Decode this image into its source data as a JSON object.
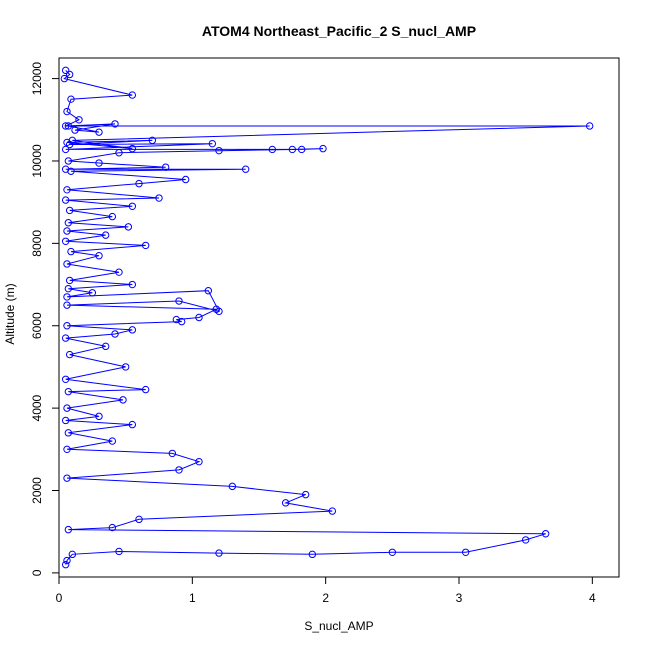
{
  "chart_data": {
    "type": "scatter",
    "title": "ATOM4 Northeast_Pacific_2 S_nucl_AMP",
    "xlabel": "S_nucl_AMP",
    "ylabel": "Altitude (m)",
    "xlim": [
      0,
      4.2
    ],
    "ylim": [
      -100,
      12500
    ],
    "x_ticks": [
      0,
      1,
      2,
      3,
      4
    ],
    "y_ticks": [
      0,
      2000,
      4000,
      6000,
      8000,
      10000,
      12000
    ],
    "grid": false,
    "legend": "none",
    "colors": {
      "series": "#0000ff",
      "axis": "#000000"
    },
    "series": [
      {
        "x": [
          0.05,
          0.08,
          0.04,
          0.55,
          0.09,
          0.06,
          0.15,
          0.05,
          0.42,
          0.12,
          0.3,
          0.07,
          3.98,
          0.1,
          0.55,
          0.06,
          0.7,
          0.08,
          1.15,
          0.05,
          1.6,
          1.75,
          1.98,
          1.82,
          1.2,
          0.45,
          0.07,
          0.3,
          0.8,
          0.05,
          1.4,
          0.09,
          0.95,
          0.6,
          0.06,
          0.75,
          0.05,
          0.55,
          0.08,
          0.4,
          0.07,
          0.52,
          0.06,
          0.35,
          0.05,
          0.65,
          0.09,
          0.3,
          0.06,
          0.45,
          0.08,
          0.55,
          0.07,
          0.25,
          0.06,
          1.12,
          1.2,
          0.9,
          0.06,
          1.18,
          1.05,
          0.88,
          0.92,
          0.06,
          0.55,
          0.42,
          0.05,
          0.35,
          0.08,
          0.5,
          0.05,
          0.65,
          0.07,
          0.48,
          0.06,
          0.3,
          0.05,
          0.55,
          0.07,
          0.4,
          0.06,
          0.85,
          1.05,
          0.9,
          0.06,
          1.3,
          1.85,
          1.7,
          2.05,
          0.6,
          0.4,
          0.07,
          3.65,
          3.5,
          3.05,
          2.5,
          1.9,
          1.2,
          0.45,
          0.1,
          0.06,
          0.05
        ],
        "y": [
          12200,
          12100,
          12000,
          11600,
          11500,
          11200,
          11000,
          10850,
          10900,
          10750,
          10700,
          10850,
          10850,
          10500,
          10300,
          10450,
          10500,
          10400,
          10420,
          10280,
          10280,
          10280,
          10300,
          10280,
          10250,
          10200,
          10000,
          9950,
          9850,
          9800,
          9800,
          9750,
          9550,
          9450,
          9300,
          9100,
          9050,
          8900,
          8800,
          8650,
          8500,
          8400,
          8300,
          8200,
          8050,
          7950,
          7800,
          7700,
          7500,
          7300,
          7100,
          7000,
          6900,
          6800,
          6700,
          6850,
          6350,
          6600,
          6500,
          6400,
          6200,
          6150,
          6100,
          6000,
          5900,
          5800,
          5700,
          5500,
          5300,
          5000,
          4700,
          4450,
          4400,
          4200,
          4000,
          3800,
          3700,
          3600,
          3400,
          3200,
          3000,
          2900,
          2700,
          2500,
          2300,
          2100,
          1900,
          1700,
          1500,
          1300,
          1100,
          1050,
          950,
          800,
          500,
          500,
          450,
          480,
          520,
          450,
          300,
          200
        ]
      }
    ]
  }
}
